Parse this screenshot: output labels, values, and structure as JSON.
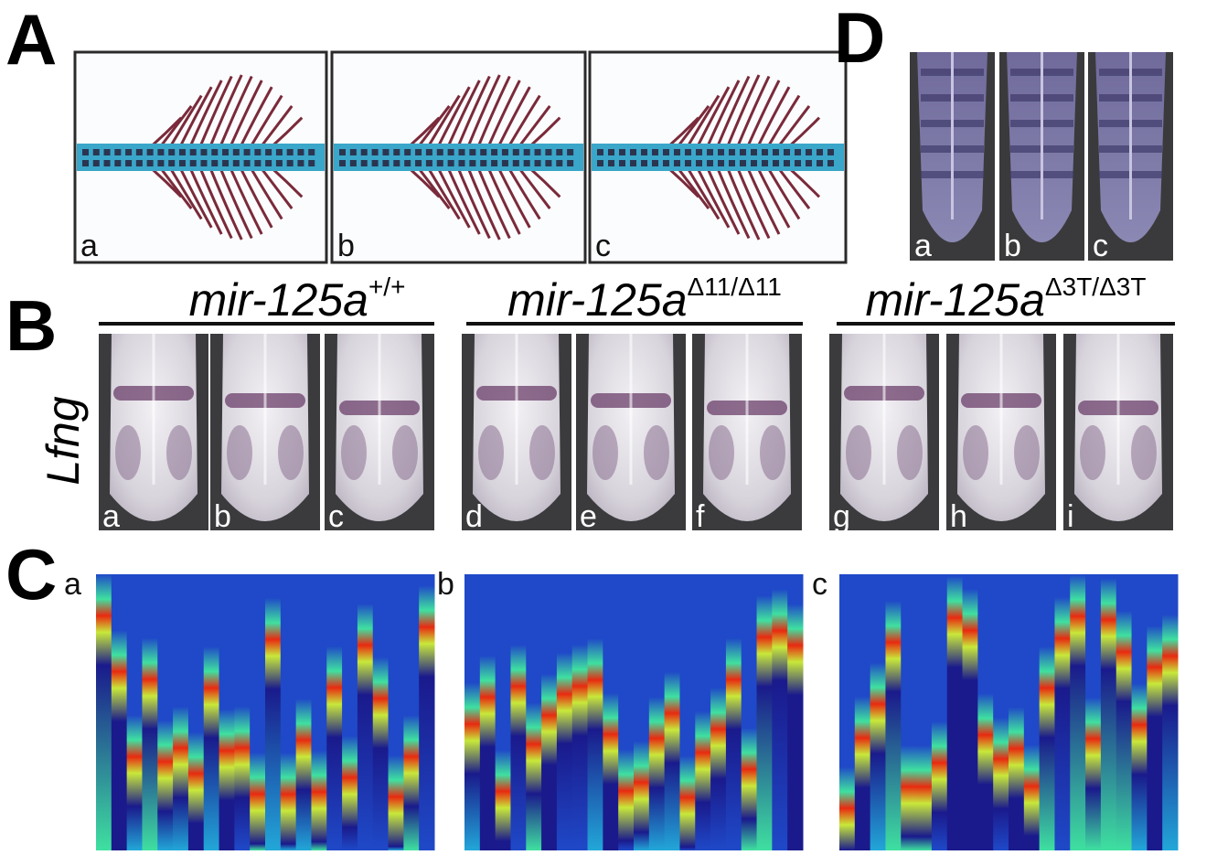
{
  "panels": {
    "A": {
      "label": "A",
      "subpanels": [
        "a",
        "b",
        "c"
      ]
    },
    "B": {
      "label": "B",
      "gene": "Lfng",
      "groups": [
        {
          "name": "mir-125a",
          "superscript": "+/+",
          "subpanels": [
            "a",
            "b",
            "c"
          ]
        },
        {
          "name": "mir-125a",
          "superscript": "Δ11/Δ11",
          "subpanels": [
            "d",
            "e",
            "f"
          ]
        },
        {
          "name": "mir-125a",
          "superscript": "Δ3T/Δ3T",
          "subpanels": [
            "g",
            "h",
            "i"
          ]
        }
      ]
    },
    "C": {
      "label": "C",
      "subpanels": [
        "a",
        "b",
        "c"
      ]
    },
    "D": {
      "label": "D",
      "subpanels": [
        "a",
        "b",
        "c"
      ]
    }
  }
}
